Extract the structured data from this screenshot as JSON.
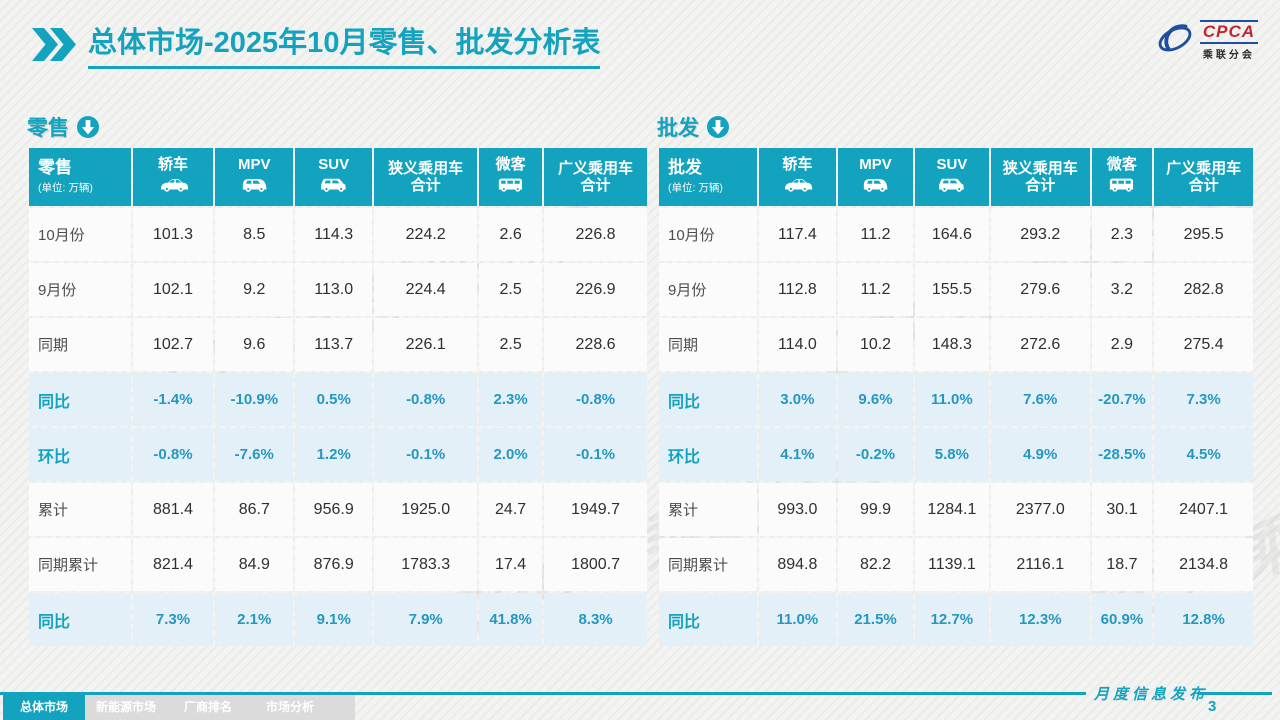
{
  "page": {
    "title_bold": "总体市场",
    "title_rest": "-2025年10月零售、批发分析表",
    "footer_label": "月度信息发布",
    "page_number": "3",
    "watermark_text": "CPCA 乘联分会"
  },
  "logo": {
    "text": "CPCA",
    "subtext": "乘联分会"
  },
  "colors": {
    "teal": "#14A3BF",
    "highlight_bg": "#E4F0F7",
    "highlight_text": "#2697C0",
    "nav_inactive": "#DBDBDB",
    "logo_red": "#C0272D",
    "logo_blue": "#1E4F9E"
  },
  "columns": [
    {
      "name": "sedan",
      "label": "轿车",
      "icon": "sedan-icon"
    },
    {
      "name": "mpv",
      "label": "MPV",
      "icon": "mpv-icon"
    },
    {
      "name": "suv",
      "label": "SUV",
      "icon": "suv-icon"
    },
    {
      "name": "narrow-total",
      "label": [
        "狭义乘用车",
        "合计"
      ]
    },
    {
      "name": "microvan",
      "label": "微客",
      "icon": "van-icon"
    },
    {
      "name": "broad-total",
      "label": [
        "广义乘用车",
        "合计"
      ]
    }
  ],
  "tables": [
    {
      "id": "retail",
      "section_title": "零售",
      "corner_title": "零售",
      "unit": "(单位: 万辆)",
      "rows": [
        {
          "label": "10月份",
          "highlight": false,
          "values": [
            "101.3",
            "8.5",
            "114.3",
            "224.2",
            "2.6",
            "226.8"
          ]
        },
        {
          "label": "9月份",
          "highlight": false,
          "values": [
            "102.1",
            "9.2",
            "113.0",
            "224.4",
            "2.5",
            "226.9"
          ]
        },
        {
          "label": "同期",
          "highlight": false,
          "values": [
            "102.7",
            "9.6",
            "113.7",
            "226.1",
            "2.5",
            "228.6"
          ]
        },
        {
          "label": "同比",
          "highlight": true,
          "values": [
            "-1.4%",
            "-10.9%",
            "0.5%",
            "-0.8%",
            "2.3%",
            "-0.8%"
          ]
        },
        {
          "label": "环比",
          "highlight": true,
          "values": [
            "-0.8%",
            "-7.6%",
            "1.2%",
            "-0.1%",
            "2.0%",
            "-0.1%"
          ]
        },
        {
          "label": "累计",
          "highlight": false,
          "values": [
            "881.4",
            "86.7",
            "956.9",
            "1925.0",
            "24.7",
            "1949.7"
          ]
        },
        {
          "label": "同期累计",
          "highlight": false,
          "values": [
            "821.4",
            "84.9",
            "876.9",
            "1783.3",
            "17.4",
            "1800.7"
          ]
        },
        {
          "label": "同比",
          "highlight": true,
          "values": [
            "7.3%",
            "2.1%",
            "9.1%",
            "7.9%",
            "41.8%",
            "8.3%"
          ]
        }
      ]
    },
    {
      "id": "wholesale",
      "section_title": "批发",
      "corner_title": "批发",
      "unit": "(单位: 万辆)",
      "rows": [
        {
          "label": "10月份",
          "highlight": false,
          "values": [
            "117.4",
            "11.2",
            "164.6",
            "293.2",
            "2.3",
            "295.5"
          ]
        },
        {
          "label": "9月份",
          "highlight": false,
          "values": [
            "112.8",
            "11.2",
            "155.5",
            "279.6",
            "3.2",
            "282.8"
          ]
        },
        {
          "label": "同期",
          "highlight": false,
          "values": [
            "114.0",
            "10.2",
            "148.3",
            "272.6",
            "2.9",
            "275.4"
          ]
        },
        {
          "label": "同比",
          "highlight": true,
          "values": [
            "3.0%",
            "9.6%",
            "11.0%",
            "7.6%",
            "-20.7%",
            "7.3%"
          ]
        },
        {
          "label": "环比",
          "highlight": true,
          "values": [
            "4.1%",
            "-0.2%",
            "5.8%",
            "4.9%",
            "-28.5%",
            "4.5%"
          ]
        },
        {
          "label": "累计",
          "highlight": false,
          "values": [
            "993.0",
            "99.9",
            "1284.1",
            "2377.0",
            "30.1",
            "2407.1"
          ]
        },
        {
          "label": "同期累计",
          "highlight": false,
          "values": [
            "894.8",
            "82.2",
            "1139.1",
            "2116.1",
            "18.7",
            "2134.8"
          ]
        },
        {
          "label": "同比",
          "highlight": true,
          "values": [
            "11.0%",
            "21.5%",
            "12.7%",
            "12.3%",
            "60.9%",
            "12.8%"
          ]
        }
      ]
    }
  ],
  "nav": {
    "items": [
      {
        "label": "总体市场",
        "active": true
      },
      {
        "label": "新能源市场",
        "active": false
      },
      {
        "label": "厂商排名",
        "active": false
      },
      {
        "label": "市场分析",
        "active": false
      }
    ]
  }
}
